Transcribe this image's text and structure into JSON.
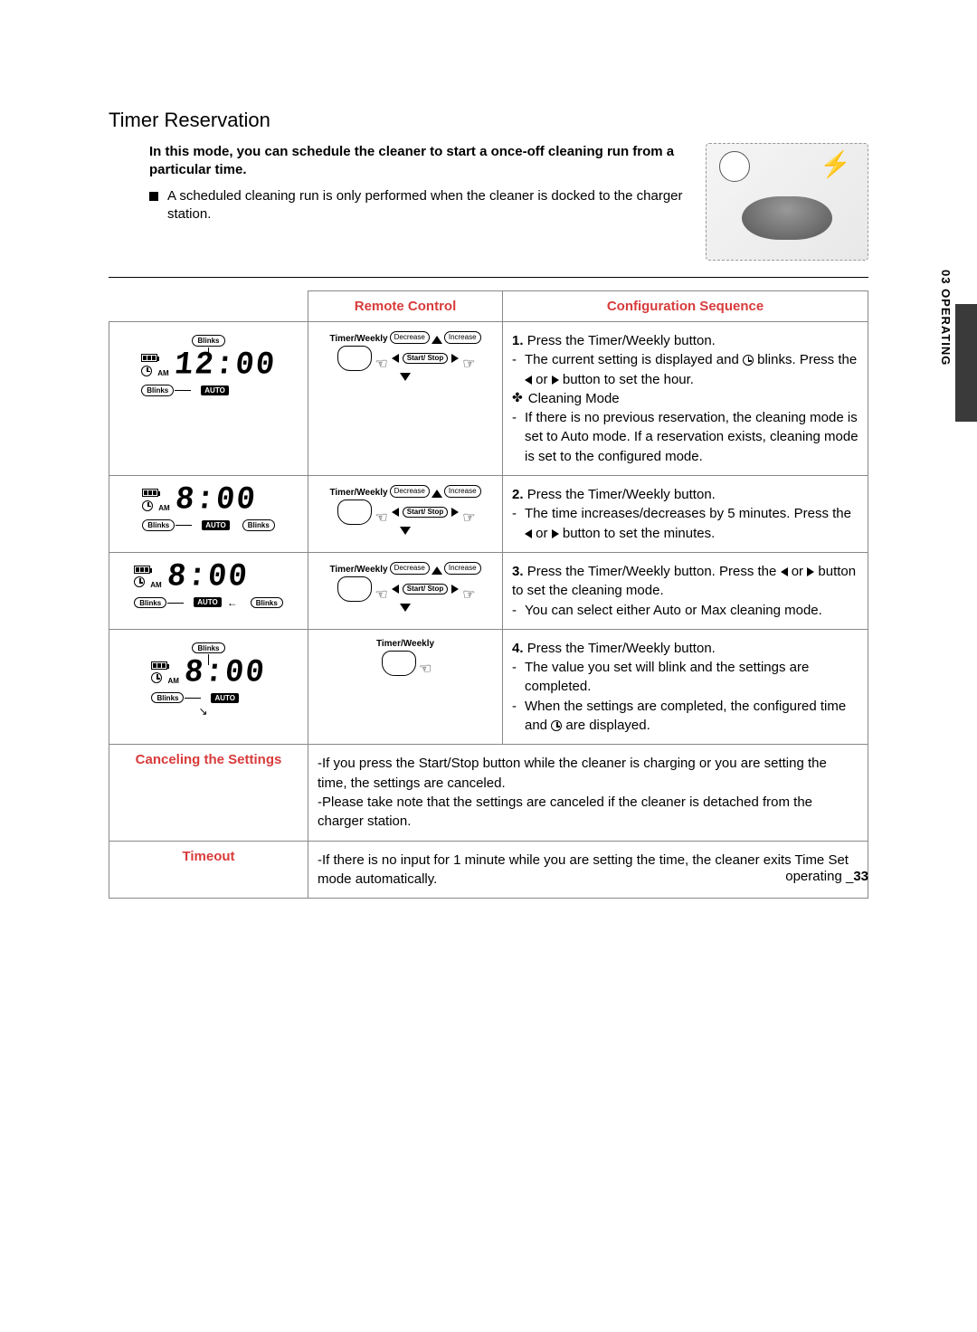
{
  "section_title": "Timer Reservation",
  "intro_bold": "In this mode, you can schedule the cleaner to start a once-off cleaning run from a particular time.",
  "intro_bullet": "A scheduled cleaning run is only performed when the cleaner is docked to the charger station.",
  "side_tab": "03  OPERATING",
  "table": {
    "headers": {
      "remote": "Remote Control",
      "sequence": "Configuration Sequence"
    },
    "rows": [
      {
        "display": {
          "top_blinks": "Blinks",
          "left_blinks": "Blinks",
          "time": "12:00",
          "am": "AM",
          "auto": "AUTO"
        },
        "remote": {
          "tw": "Timer/Weekly",
          "dec": "Decrease",
          "inc": "Increase",
          "ss": "Start/\nStop",
          "full": true
        },
        "seq": {
          "num": "1.",
          "lead": "Press the Timer/Weekly button.",
          "items": [
            "The current setting is displayed and ⟳ blinks. Press the ◁ or ▷ button to set the hour.",
            "✤ Cleaning Mode",
            "If there is no previous reservation, the cleaning mode is set to Auto mode. If a reservation exists, cleaning mode is set to the configured mode."
          ]
        }
      },
      {
        "display": {
          "left_blinks": "Blinks",
          "right_blinks": "Blinks",
          "time": "8:00",
          "am": "AM",
          "auto": "AUTO"
        },
        "remote": {
          "tw": "Timer/Weekly",
          "dec": "Decrease",
          "inc": "Increase",
          "ss": "Start/\nStop",
          "full": true
        },
        "seq": {
          "num": "2.",
          "lead": "Press the Timer/Weekly button.",
          "items": [
            "The time increases/decreases by 5 minutes. Press the ◁ or ▷ button to set the minutes."
          ]
        }
      },
      {
        "display": {
          "left_blinks": "Blinks",
          "right_blinks": "Blinks",
          "time": "8:00",
          "am": "AM",
          "auto": "AUTO",
          "arrow_to_auto": true
        },
        "remote": {
          "tw": "Timer/Weekly",
          "dec": "Decrease",
          "inc": "Increase",
          "ss": "Start/\nStop",
          "full": true
        },
        "seq": {
          "num": "3.",
          "lead": "Press the Timer/Weekly button. Press the ◁ or ▷ button to set the cleaning mode.",
          "items": [
            "You can select either Auto or Max cleaning mode."
          ]
        }
      },
      {
        "display": {
          "top_blinks": "Blinks",
          "left_blinks": "Blinks",
          "time": "8:00",
          "am": "AM",
          "auto": "AUTO",
          "arrow_down": true
        },
        "remote": {
          "tw": "Timer/Weekly",
          "full": false
        },
        "seq": {
          "num": "4.",
          "lead": "Press the Timer/Weekly button.",
          "items": [
            "The value you set will blink and the settings are completed.",
            "When the settings are completed, the configured time and ⟳ are displayed."
          ]
        }
      }
    ],
    "bottom": [
      {
        "label": "Canceling the Settings",
        "items": [
          "If you press the Start/Stop button while the cleaner is charging or you are setting the time, the settings are canceled.",
          "Please take note that the settings are canceled if the cleaner is detached from the charger station."
        ]
      },
      {
        "label": "Timeout",
        "items": [
          "If there is no input for 1 minute while you are setting the time, the cleaner exits Time Set mode automatically."
        ]
      }
    ]
  },
  "footer": {
    "text": "operating _",
    "page": "33"
  },
  "colors": {
    "accent": "#d83b3b",
    "border": "#888888",
    "sidebar": "#3a3a3a"
  }
}
